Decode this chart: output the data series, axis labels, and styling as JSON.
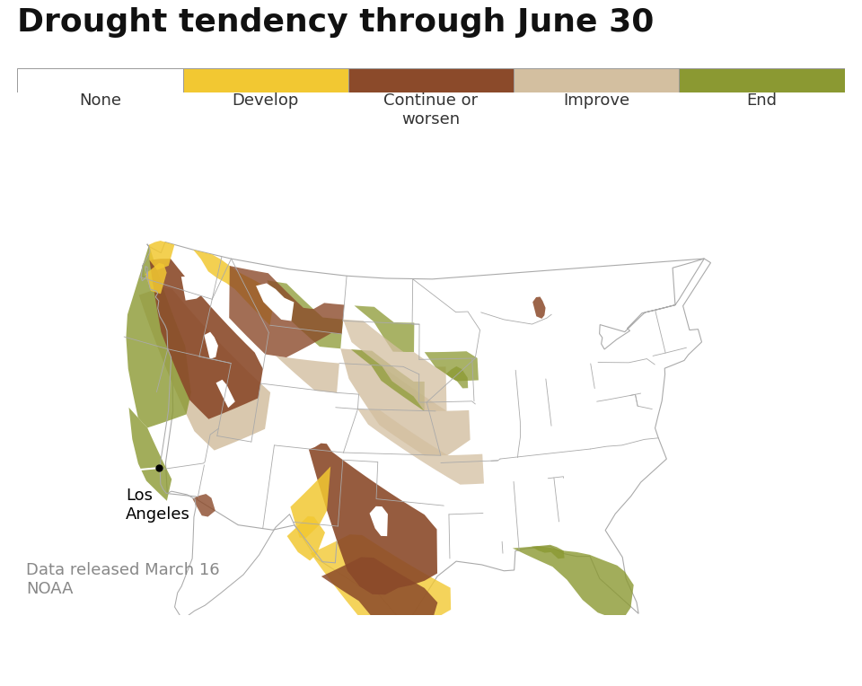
{
  "title": "Drought tendency through June 30",
  "source_line1": "Data released March 16",
  "source_line2": "NOAA",
  "bg": "#ffffff",
  "border_color": "#aaaaaa",
  "title_color": "#111111",
  "source_color": "#888888",
  "title_fontsize": 26,
  "legend_fontsize": 13,
  "source_fontsize": 13,
  "la_label": "Los\nAngeles",
  "la_lon": -118.25,
  "la_lat": 34.05,
  "col_none": "#ffffff",
  "col_develop": "#f2c832",
  "col_continue": "#8b4a2a",
  "col_improve": "#d3bfa0",
  "col_end": "#8b9932",
  "legend_colors": [
    "#ffffff",
    "#f2c832",
    "#8b4a2a",
    "#d3bfa0",
    "#8b9932"
  ],
  "legend_labels": [
    "None",
    "Develop",
    "Continue or\nworsen",
    "Improve",
    "End"
  ]
}
